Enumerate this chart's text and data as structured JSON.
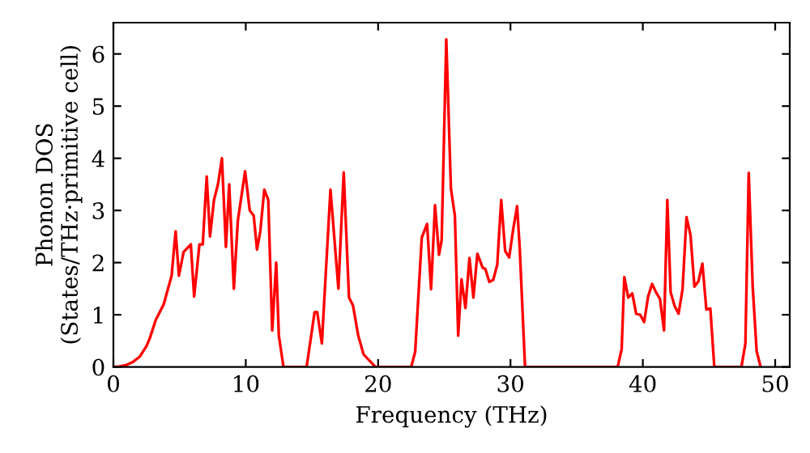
{
  "chart_data": {
    "type": "line",
    "xlabel": "Frequency (THz)",
    "ylabel": "Phonon DOS\n(States/THz·primitive cell)",
    "xlim": [
      0,
      51.1
    ],
    "ylim": [
      0,
      6.6
    ],
    "xticks": [
      0,
      10,
      20,
      30,
      40,
      50
    ],
    "yticks": [
      0,
      1,
      2,
      3,
      4,
      5,
      6
    ],
    "grid": false,
    "line_style": "solid",
    "marker": "none",
    "series": [
      {
        "color": "#ff0000",
        "x": [
          0,
          0.5,
          1,
          1.5,
          2,
          2.5,
          2.75,
          3.2,
          3.8,
          4.4,
          4.7,
          4.95,
          5.3,
          5.85,
          6.1,
          6.5,
          6.75,
          7.05,
          7.3,
          7.6,
          7.9,
          8.2,
          8.5,
          8.75,
          9.1,
          9.4,
          9.95,
          10.3,
          10.6,
          10.85,
          11.1,
          11.4,
          11.7,
          12.0,
          12.3,
          12.5,
          12.85,
          14.6,
          15.2,
          15.4,
          15.75,
          16.4,
          17.0,
          17.4,
          17.8,
          18.1,
          18.5,
          18.9,
          19.8,
          22.5,
          22.8,
          23.3,
          23.7,
          24.0,
          24.3,
          24.6,
          24.8,
          25.15,
          25.5,
          25.8,
          26.05,
          26.3,
          26.6,
          26.9,
          27.2,
          27.5,
          27.9,
          28.1,
          28.4,
          28.7,
          29.0,
          29.3,
          29.6,
          29.9,
          30.2,
          30.5,
          30.7,
          31.1,
          38.1,
          38.4,
          38.6,
          38.9,
          39.2,
          39.5,
          39.8,
          40.1,
          40.4,
          40.7,
          41.0,
          41.3,
          41.6,
          41.85,
          42.1,
          42.4,
          42.7,
          43.0,
          43.3,
          43.6,
          43.9,
          44.2,
          44.5,
          44.8,
          45.1,
          45.4,
          47.45,
          47.75,
          48.0,
          48.3,
          48.6,
          48.9
        ],
        "values": [
          0,
          0.01,
          0.04,
          0.1,
          0.2,
          0.4,
          0.55,
          0.9,
          1.2,
          1.75,
          2.6,
          1.75,
          2.2,
          2.35,
          1.35,
          2.35,
          2.35,
          3.65,
          2.5,
          3.2,
          3.5,
          4.0,
          2.3,
          3.5,
          1.5,
          2.8,
          3.75,
          3.0,
          2.9,
          2.25,
          2.6,
          3.4,
          3.2,
          0.7,
          2.0,
          0.6,
          0,
          0,
          1.05,
          1.05,
          0.45,
          3.4,
          1.5,
          3.73,
          1.33,
          1.18,
          0.6,
          0.24,
          0,
          0,
          0.29,
          2.48,
          2.74,
          1.49,
          3.1,
          2.15,
          2.43,
          6.28,
          3.42,
          2.9,
          0.6,
          1.68,
          1.13,
          2.09,
          1.33,
          2.17,
          1.9,
          1.88,
          1.63,
          1.67,
          1.96,
          3.2,
          2.22,
          2.1,
          2.63,
          3.08,
          2.27,
          0,
          0,
          0.34,
          1.72,
          1.33,
          1.41,
          1.02,
          1.0,
          0.86,
          1.35,
          1.59,
          1.43,
          1.3,
          0.7,
          3.2,
          1.43,
          1.17,
          1.02,
          1.49,
          2.87,
          2.53,
          1.54,
          1.64,
          1.98,
          1.1,
          1.12,
          0,
          0,
          0.45,
          3.72,
          1.54,
          0.3,
          0
        ]
      }
    ]
  }
}
